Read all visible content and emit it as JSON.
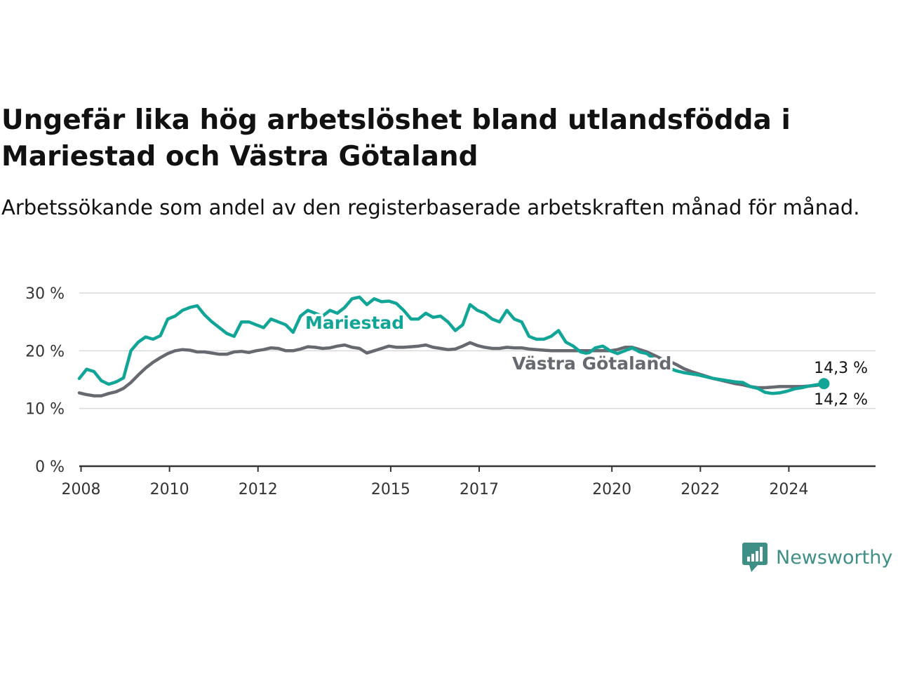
{
  "title": "Ungefär lika hög arbetslöshet bland utlandsfödda i Mariestad och Västra Götaland",
  "subtitle": "Arbetssökande som andel av den registerbaserade arbetskraften månad för månad.",
  "brand": {
    "name": "Newsworthy",
    "icon": "newsworthy-chart-bubble-icon",
    "color": "#3e8f86"
  },
  "chart_data": {
    "type": "line",
    "title": "Ungefär lika hög arbetslöshet bland utlandsfödda i Mariestad och Västra Götaland",
    "subtitle": "Arbetssökande som andel av den registerbaserade arbetskraften månad för månad.",
    "xlabel": "",
    "ylabel": "",
    "x_ticks": [
      "2008",
      "2010",
      "2012",
      "2015",
      "2017",
      "2020",
      "2022",
      "2024"
    ],
    "y_ticks": [
      {
        "value": 0,
        "label": "0 %"
      },
      {
        "value": 10,
        "label": "10 %"
      },
      {
        "value": 20,
        "label": "20 %"
      },
      {
        "value": 30,
        "label": "30 %"
      }
    ],
    "xlim": [
      "2008-01",
      "2025-12"
    ],
    "ylim": [
      0,
      30
    ],
    "grid": "horizontal",
    "series": [
      {
        "name": "Mariestad",
        "color": "#11a597",
        "end_label": "14,3 %",
        "points": [
          [
            "2008-01",
            15.2
          ],
          [
            "2008-03",
            16.8
          ],
          [
            "2008-05",
            16.4
          ],
          [
            "2008-07",
            14.8
          ],
          [
            "2008-09",
            14.2
          ],
          [
            "2008-11",
            14.6
          ],
          [
            "2009-01",
            15.3
          ],
          [
            "2009-03",
            20.0
          ],
          [
            "2009-05",
            21.5
          ],
          [
            "2009-07",
            22.4
          ],
          [
            "2009-09",
            22.0
          ],
          [
            "2009-11",
            22.6
          ],
          [
            "2010-01",
            25.5
          ],
          [
            "2010-03",
            26.0
          ],
          [
            "2010-05",
            27.0
          ],
          [
            "2010-07",
            27.5
          ],
          [
            "2010-09",
            27.8
          ],
          [
            "2010-11",
            26.2
          ],
          [
            "2011-01",
            25.0
          ],
          [
            "2011-03",
            24.0
          ],
          [
            "2011-05",
            23.0
          ],
          [
            "2011-07",
            22.5
          ],
          [
            "2011-09",
            25.0
          ],
          [
            "2011-11",
            25.0
          ],
          [
            "2012-01",
            24.5
          ],
          [
            "2012-03",
            24.0
          ],
          [
            "2012-05",
            25.5
          ],
          [
            "2012-07",
            25.0
          ],
          [
            "2012-09",
            24.5
          ],
          [
            "2012-11",
            23.2
          ],
          [
            "2013-01",
            26.0
          ],
          [
            "2013-03",
            27.0
          ],
          [
            "2013-05",
            26.5
          ],
          [
            "2013-07",
            26.0
          ],
          [
            "2013-09",
            27.0
          ],
          [
            "2013-11",
            26.5
          ],
          [
            "2014-01",
            27.5
          ],
          [
            "2014-03",
            29.0
          ],
          [
            "2014-05",
            29.3
          ],
          [
            "2014-07",
            28.0
          ],
          [
            "2014-09",
            29.0
          ],
          [
            "2014-11",
            28.5
          ],
          [
            "2015-01",
            28.6
          ],
          [
            "2015-03",
            28.2
          ],
          [
            "2015-05",
            27.0
          ],
          [
            "2015-07",
            25.5
          ],
          [
            "2015-09",
            25.5
          ],
          [
            "2015-11",
            26.5
          ],
          [
            "2016-01",
            25.8
          ],
          [
            "2016-03",
            26.0
          ],
          [
            "2016-05",
            25.0
          ],
          [
            "2016-07",
            23.5
          ],
          [
            "2016-09",
            24.5
          ],
          [
            "2016-11",
            28.0
          ],
          [
            "2017-01",
            27.0
          ],
          [
            "2017-03",
            26.5
          ],
          [
            "2017-05",
            25.5
          ],
          [
            "2017-07",
            25.0
          ],
          [
            "2017-09",
            27.0
          ],
          [
            "2017-11",
            25.5
          ],
          [
            "2018-01",
            25.0
          ],
          [
            "2018-03",
            22.5
          ],
          [
            "2018-05",
            22.0
          ],
          [
            "2018-07",
            22.0
          ],
          [
            "2018-09",
            22.5
          ],
          [
            "2018-11",
            23.5
          ],
          [
            "2019-01",
            21.5
          ],
          [
            "2019-03",
            20.8
          ],
          [
            "2019-05",
            19.8
          ],
          [
            "2019-07",
            19.5
          ],
          [
            "2019-09",
            20.5
          ],
          [
            "2019-11",
            20.8
          ],
          [
            "2020-01",
            20.0
          ],
          [
            "2020-03",
            19.5
          ],
          [
            "2020-05",
            20.0
          ],
          [
            "2020-07",
            20.5
          ],
          [
            "2020-09",
            19.8
          ],
          [
            "2020-11",
            19.5
          ],
          [
            "2021-01",
            18.5
          ],
          [
            "2021-03",
            17.8
          ],
          [
            "2021-05",
            17.0
          ],
          [
            "2021-07",
            16.5
          ],
          [
            "2021-09",
            16.2
          ],
          [
            "2021-11",
            16.0
          ],
          [
            "2022-01",
            15.8
          ],
          [
            "2022-03",
            15.5
          ],
          [
            "2022-05",
            15.2
          ],
          [
            "2022-07",
            15.0
          ],
          [
            "2022-09",
            14.8
          ],
          [
            "2022-11",
            14.6
          ],
          [
            "2023-01",
            14.5
          ],
          [
            "2023-03",
            13.8
          ],
          [
            "2023-05",
            13.5
          ],
          [
            "2023-07",
            12.8
          ],
          [
            "2023-09",
            12.6
          ],
          [
            "2023-11",
            12.7
          ],
          [
            "2024-01",
            13.0
          ],
          [
            "2024-03",
            13.4
          ],
          [
            "2024-05",
            13.6
          ],
          [
            "2024-07",
            13.9
          ],
          [
            "2024-09",
            14.1
          ],
          [
            "2024-11",
            14.3
          ]
        ]
      },
      {
        "name": "Västra Götaland",
        "color": "#666a70",
        "end_label": "14,2 %",
        "points": [
          [
            "2008-01",
            12.7
          ],
          [
            "2008-03",
            12.4
          ],
          [
            "2008-05",
            12.2
          ],
          [
            "2008-07",
            12.2
          ],
          [
            "2008-09",
            12.6
          ],
          [
            "2008-11",
            12.9
          ],
          [
            "2009-01",
            13.5
          ],
          [
            "2009-03",
            14.5
          ],
          [
            "2009-05",
            15.8
          ],
          [
            "2009-07",
            17.0
          ],
          [
            "2009-09",
            18.0
          ],
          [
            "2009-11",
            18.8
          ],
          [
            "2010-01",
            19.5
          ],
          [
            "2010-03",
            20.0
          ],
          [
            "2010-05",
            20.2
          ],
          [
            "2010-07",
            20.1
          ],
          [
            "2010-09",
            19.8
          ],
          [
            "2010-11",
            19.8
          ],
          [
            "2011-01",
            19.6
          ],
          [
            "2011-03",
            19.4
          ],
          [
            "2011-05",
            19.4
          ],
          [
            "2011-07",
            19.8
          ],
          [
            "2011-09",
            19.9
          ],
          [
            "2011-11",
            19.7
          ],
          [
            "2012-01",
            20.0
          ],
          [
            "2012-03",
            20.2
          ],
          [
            "2012-05",
            20.5
          ],
          [
            "2012-07",
            20.4
          ],
          [
            "2012-09",
            20.0
          ],
          [
            "2012-11",
            20.0
          ],
          [
            "2013-01",
            20.3
          ],
          [
            "2013-03",
            20.7
          ],
          [
            "2013-05",
            20.6
          ],
          [
            "2013-07",
            20.4
          ],
          [
            "2013-09",
            20.5
          ],
          [
            "2013-11",
            20.8
          ],
          [
            "2014-01",
            21.0
          ],
          [
            "2014-03",
            20.6
          ],
          [
            "2014-05",
            20.4
          ],
          [
            "2014-07",
            19.6
          ],
          [
            "2014-09",
            20.0
          ],
          [
            "2014-11",
            20.4
          ],
          [
            "2015-01",
            20.8
          ],
          [
            "2015-03",
            20.6
          ],
          [
            "2015-05",
            20.6
          ],
          [
            "2015-07",
            20.7
          ],
          [
            "2015-09",
            20.8
          ],
          [
            "2015-11",
            21.0
          ],
          [
            "2016-01",
            20.6
          ],
          [
            "2016-03",
            20.4
          ],
          [
            "2016-05",
            20.2
          ],
          [
            "2016-07",
            20.3
          ],
          [
            "2016-09",
            20.8
          ],
          [
            "2016-11",
            21.4
          ],
          [
            "2017-01",
            20.9
          ],
          [
            "2017-03",
            20.6
          ],
          [
            "2017-05",
            20.4
          ],
          [
            "2017-07",
            20.4
          ],
          [
            "2017-09",
            20.6
          ],
          [
            "2017-11",
            20.5
          ],
          [
            "2018-01",
            20.5
          ],
          [
            "2018-03",
            20.3
          ],
          [
            "2018-05",
            20.2
          ],
          [
            "2018-07",
            20.1
          ],
          [
            "2018-09",
            20.0
          ],
          [
            "2018-11",
            20.0
          ],
          [
            "2019-01",
            20.0
          ],
          [
            "2019-03",
            20.0
          ],
          [
            "2019-05",
            20.0
          ],
          [
            "2019-07",
            20.0
          ],
          [
            "2019-09",
            20.0
          ],
          [
            "2019-11",
            20.0
          ],
          [
            "2020-01",
            20.0
          ],
          [
            "2020-03",
            20.2
          ],
          [
            "2020-05",
            20.6
          ],
          [
            "2020-07",
            20.6
          ],
          [
            "2020-09",
            20.2
          ],
          [
            "2020-11",
            19.8
          ],
          [
            "2021-01",
            19.2
          ],
          [
            "2021-03",
            18.6
          ],
          [
            "2021-05",
            18.2
          ],
          [
            "2021-07",
            17.6
          ],
          [
            "2021-09",
            16.9
          ],
          [
            "2021-11",
            16.4
          ],
          [
            "2022-01",
            16.0
          ],
          [
            "2022-03",
            15.6
          ],
          [
            "2022-05",
            15.2
          ],
          [
            "2022-07",
            14.9
          ],
          [
            "2022-09",
            14.6
          ],
          [
            "2022-11",
            14.3
          ],
          [
            "2023-01",
            14.1
          ],
          [
            "2023-03",
            13.8
          ],
          [
            "2023-05",
            13.6
          ],
          [
            "2023-07",
            13.6
          ],
          [
            "2023-09",
            13.7
          ],
          [
            "2023-11",
            13.8
          ],
          [
            "2024-01",
            13.8
          ],
          [
            "2024-03",
            13.8
          ],
          [
            "2024-05",
            13.8
          ],
          [
            "2024-07",
            13.9
          ],
          [
            "2024-09",
            14.0
          ],
          [
            "2024-11",
            14.2
          ]
        ]
      }
    ]
  }
}
